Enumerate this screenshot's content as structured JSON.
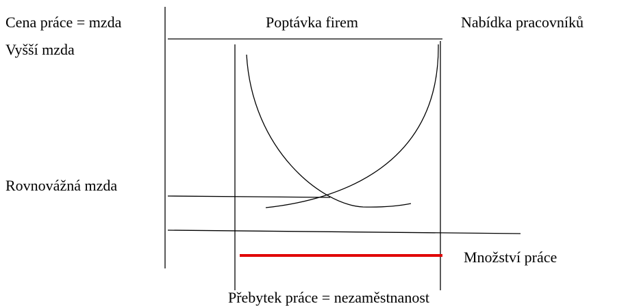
{
  "labels": {
    "wage_axis": "Cena práce = mzda",
    "demand": "Poptávka firem",
    "supply": "Nabídka pracovníků",
    "higher_wage": "Vyšší mzda",
    "equilibrium_wage": "Rovnovážná mzda",
    "quantity": "Množství práce",
    "surplus": "Přebytek práce = nezaměstnanost"
  }
}
